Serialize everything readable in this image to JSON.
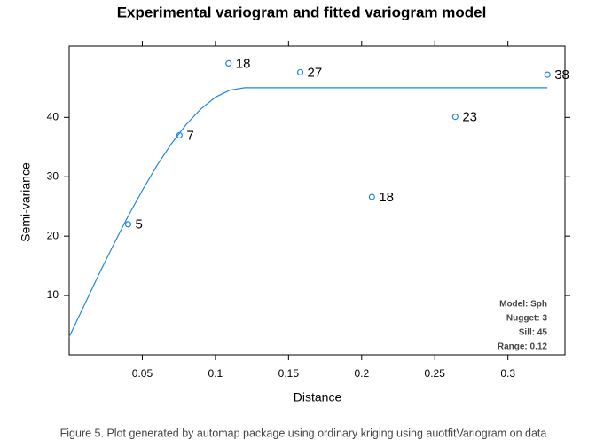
{
  "chart_data": {
    "type": "scatter",
    "title": "Experimental variogram and fitted variogram model",
    "x_label": "Distance",
    "y_label": "Semi-variance",
    "xlim": [
      0,
      0.339
    ],
    "ylim": [
      0,
      52
    ],
    "xticks": [
      0.05,
      0.1,
      0.15,
      0.2,
      0.25,
      0.3
    ],
    "yticks": [
      10,
      20,
      30,
      40
    ],
    "color": "#1e88e5",
    "x": [
      0.0403,
      0.0754,
      0.109,
      0.158,
      0.207,
      0.264,
      0.327
    ],
    "values": [
      22,
      37,
      49.1,
      47.6,
      26.6,
      40.1,
      47.2
    ],
    "pair_counts": [
      5,
      7,
      18,
      27,
      18,
      23,
      38
    ],
    "model_line": {
      "x": [
        0,
        0.01,
        0.02,
        0.03,
        0.04,
        0.05,
        0.06,
        0.07,
        0.08,
        0.09,
        0.1,
        0.11,
        0.12,
        0.327
      ],
      "values": [
        3,
        8.2,
        13.4,
        18.4,
        23.2,
        27.7,
        31.9,
        35.6,
        38.8,
        41.4,
        43.4,
        44.6,
        45,
        45
      ]
    },
    "annotations": [
      "Model: Sph",
      "Nugget: 3",
      "Sill: 45",
      "Range: 0.12"
    ]
  },
  "caption": "Figure 5. Plot generated by automap package using ordinary kriging using auotfitVariogram on data"
}
